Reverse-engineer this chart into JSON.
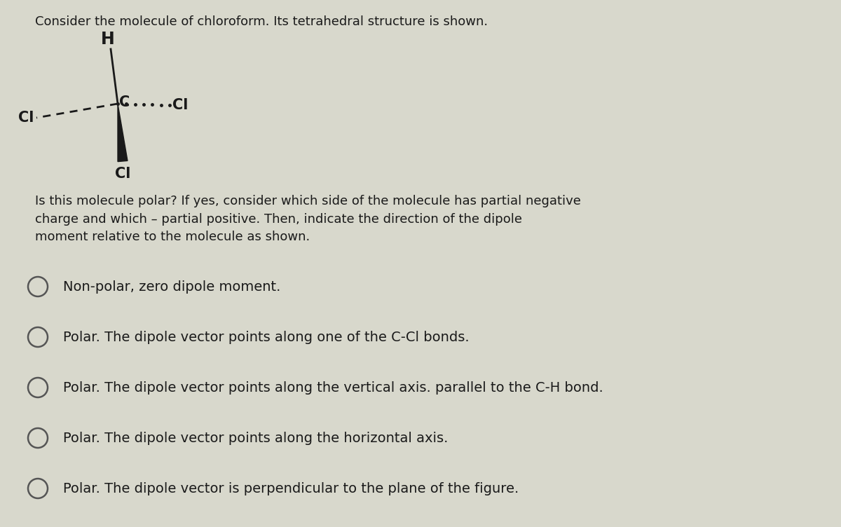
{
  "background_color": "#d8d8cc",
  "title_text": "Consider the molecule of chloroform. Its tetrahedral structure is shown.",
  "title_fontsize": 13.0,
  "title_color": "#1a1a1a",
  "question_text": "Is this molecule polar? If yes, consider which side of the molecule has partial negative\ncharge and which – partial positive. Then, indicate the direction of the dipole\nmoment relative to the molecule as shown.",
  "question_fontsize": 13.0,
  "options": [
    "Non-polar, zero dipole moment.",
    "Polar. The dipole vector points along one of the C-Cl bonds.",
    "Polar. The dipole vector points along the vertical axis. parallel to the C-H bond.",
    "Polar. The dipole vector points along the horizontal axis.",
    "Polar. The dipole vector is perpendicular to the plane of the figure."
  ],
  "options_fontsize": 14.0,
  "radio_color": "#555555",
  "atom_color": "#1a1a1a",
  "bond_color": "#1a1a1a"
}
